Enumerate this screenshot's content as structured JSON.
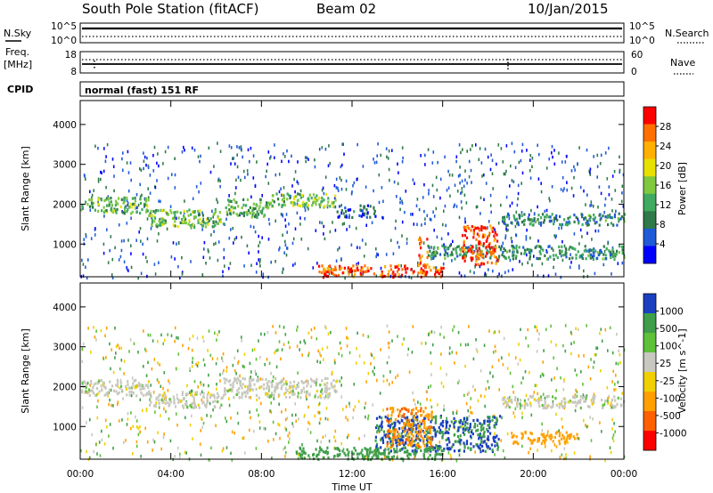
{
  "header": {
    "station": "South Pole Station (fitACF)",
    "beam": "Beam 02",
    "date": "10/Jan/2015"
  },
  "summary": {
    "nsky_label": "N.Sky",
    "nsearch_label": "N.Search",
    "freq_label": "Freq.",
    "freq_unit": "[MHz]",
    "nave_label": "Nave",
    "cpid_label": "CPID",
    "cpid_text": "normal (fast) 151 RF",
    "noise_ticks_left": [
      "10^5",
      "10^0"
    ],
    "noise_ticks_right": [
      "10^5",
      "10^0"
    ],
    "freq_ticks": [
      "18",
      "8"
    ],
    "nave_ticks": [
      "60",
      "0"
    ]
  },
  "chart_data": [
    {
      "type": "heatmap",
      "panel": "power",
      "xlabel": "",
      "ylabel": "Slant Range [km]",
      "xlim": [
        0,
        24
      ],
      "ylim": [
        180,
        4600
      ],
      "yticks": [
        "1000",
        "2000",
        "3000",
        "4000"
      ],
      "colorbar_label": "Power [dB]",
      "colorbar_ticks": [
        "4",
        "8",
        "12",
        "16",
        "20",
        "24",
        "28"
      ],
      "colors": [
        "#0000ff",
        "#1f5ad8",
        "#2f7a48",
        "#3faa60",
        "#80c840",
        "#e8e000",
        "#ffb000",
        "#ff7000",
        "#ff0000"
      ],
      "bands": [
        {
          "x": [
            0,
            3.0
          ],
          "y": [
            1800,
            2200
          ],
          "value": 14
        },
        {
          "x": [
            3.0,
            6.3
          ],
          "y": [
            1450,
            1900
          ],
          "value": 14
        },
        {
          "x": [
            6.3,
            8.3
          ],
          "y": [
            1700,
            2150
          ],
          "value": 13
        },
        {
          "x": [
            8.3,
            11.3
          ],
          "y": [
            1950,
            2300
          ],
          "value": 15
        },
        {
          "x": [
            11.3,
            13.0
          ],
          "y": [
            1700,
            2000
          ],
          "value": 6
        },
        {
          "x": [
            18.6,
            24
          ],
          "y": [
            1500,
            1800
          ],
          "value": 10
        },
        {
          "x": [
            15.3,
            24
          ],
          "y": [
            650,
            1000
          ],
          "value": 10
        },
        {
          "x": [
            10.5,
            16.0
          ],
          "y": [
            200,
            500
          ],
          "value": 28
        },
        {
          "x": [
            16.8,
            18.4
          ],
          "y": [
            500,
            1500
          ],
          "value": 28
        },
        {
          "x": [
            14.9,
            15.3
          ],
          "y": [
            300,
            1200
          ],
          "value": 26
        }
      ]
    },
    {
      "type": "heatmap",
      "panel": "velocity",
      "xlabel": "Time UT",
      "ylabel": "Slant Range [km]",
      "xlim": [
        0,
        24
      ],
      "ylim": [
        180,
        4600
      ],
      "xticks": [
        "00:00",
        "04:00",
        "08:00",
        "12:00",
        "16:00",
        "20:00",
        "00:00"
      ],
      "yticks": [
        "1000",
        "2000",
        "3000",
        "4000"
      ],
      "colorbar_label": "Velocity [m s^-1]",
      "colorbar_ticks": [
        "1000",
        "500",
        "100",
        "25",
        "-25",
        "-100",
        "-500",
        "-1000"
      ],
      "colors": [
        "#1a3fc0",
        "#3f9e4a",
        "#5fc03a",
        "#c8c8c0",
        "#f0d000",
        "#ffa000",
        "#ff6000",
        "#ff0000"
      ],
      "bands": [
        {
          "x": [
            0,
            3.0
          ],
          "y": [
            1800,
            2200
          ],
          "value": 0
        },
        {
          "x": [
            3.0,
            6.3
          ],
          "y": [
            1500,
            1900
          ],
          "value": 0
        },
        {
          "x": [
            6.3,
            11.3
          ],
          "y": [
            1750,
            2250
          ],
          "value": 0
        },
        {
          "x": [
            18.6,
            24
          ],
          "y": [
            1500,
            1800
          ],
          "value": 0
        },
        {
          "x": [
            13.0,
            18.5
          ],
          "y": [
            400,
            1300
          ],
          "value": 600
        },
        {
          "x": [
            9.5,
            16.0
          ],
          "y": [
            200,
            500
          ],
          "value": 300
        },
        {
          "x": [
            13.5,
            15.5
          ],
          "y": [
            500,
            1500
          ],
          "value": -400
        },
        {
          "x": [
            19.0,
            22.0
          ],
          "y": [
            600,
            900
          ],
          "value": -300
        }
      ]
    }
  ]
}
